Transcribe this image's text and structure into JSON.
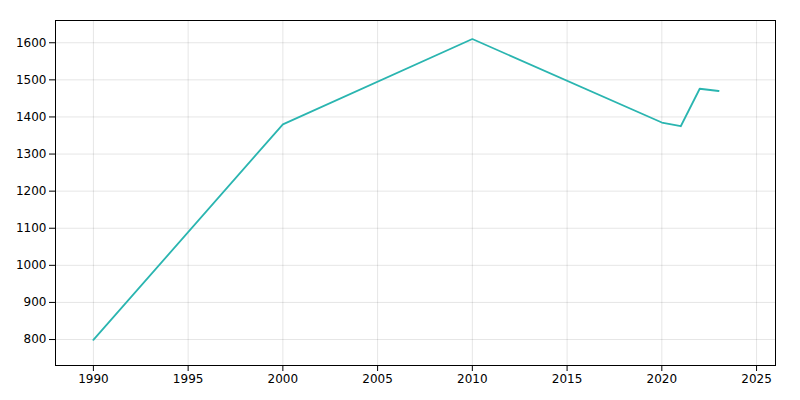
{
  "chart_data": {
    "type": "line",
    "x": [
      1990,
      2000,
      2010,
      2020,
      2021,
      2022,
      2023
    ],
    "values": [
      799,
      1380,
      1610,
      1385,
      1375,
      1476,
      1470
    ],
    "color": "#2ab5b0",
    "xlim": [
      1988,
      2026
    ],
    "ylim": [
      730,
      1660
    ],
    "xticks": [
      1990,
      1995,
      2000,
      2005,
      2010,
      2015,
      2020,
      2025
    ],
    "yticks": [
      800,
      900,
      1000,
      1100,
      1200,
      1300,
      1400,
      1500,
      1600
    ],
    "grid": true
  }
}
